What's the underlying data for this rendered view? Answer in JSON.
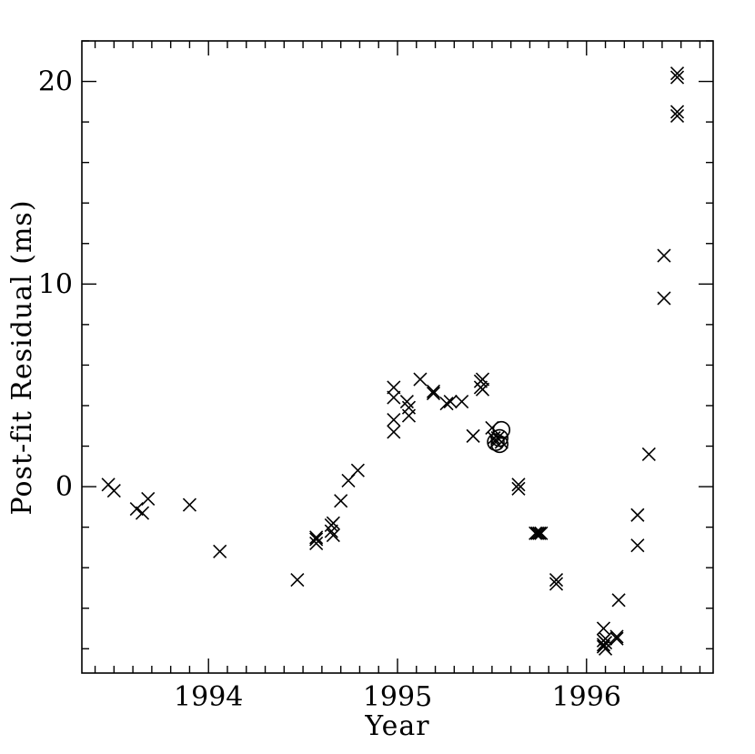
{
  "chart_data": {
    "type": "scatter",
    "title": "",
    "xlabel": "Year",
    "ylabel": "Post-fit Residual (ms)",
    "xlim": [
      1993.33,
      1996.67
    ],
    "ylim": [
      -9.2,
      22.0
    ],
    "x_major_ticks": [
      1994,
      1995,
      1996
    ],
    "x_tick_labels": [
      "1994",
      "1995",
      "1996"
    ],
    "x_minor_step": 0.1,
    "y_major_ticks": [
      0,
      10,
      20
    ],
    "y_tick_labels": [
      "0",
      "10",
      "20"
    ],
    "y_minor_step": 2,
    "grid": false,
    "series": [
      {
        "marker": "x",
        "points": [
          [
            1993.47,
            0.1
          ],
          [
            1993.5,
            -0.2
          ],
          [
            1993.62,
            -1.1
          ],
          [
            1993.65,
            -1.3
          ],
          [
            1993.68,
            -0.6
          ],
          [
            1993.9,
            -0.9
          ],
          [
            1994.06,
            -3.2
          ],
          [
            1994.47,
            -4.6
          ],
          [
            1994.57,
            -2.6
          ],
          [
            1994.57,
            -2.8
          ],
          [
            1994.57,
            -2.5
          ],
          [
            1994.65,
            -1.9
          ],
          [
            1994.65,
            -2.2
          ],
          [
            1994.66,
            -2.4
          ],
          [
            1994.66,
            -1.8
          ],
          [
            1994.7,
            -0.7
          ],
          [
            1994.74,
            0.3
          ],
          [
            1994.79,
            0.8
          ],
          [
            1994.98,
            4.9
          ],
          [
            1994.98,
            4.4
          ],
          [
            1994.98,
            3.3
          ],
          [
            1994.98,
            2.7
          ],
          [
            1995.05,
            4.2
          ],
          [
            1995.06,
            3.9
          ],
          [
            1995.06,
            3.5
          ],
          [
            1995.12,
            5.3
          ],
          [
            1995.19,
            4.7
          ],
          [
            1995.19,
            4.6
          ],
          [
            1995.26,
            4.1
          ],
          [
            1995.28,
            4.2
          ],
          [
            1995.34,
            4.2
          ],
          [
            1995.4,
            2.5
          ],
          [
            1995.44,
            5.2
          ],
          [
            1995.44,
            4.9
          ],
          [
            1995.45,
            5.3
          ],
          [
            1995.45,
            4.8
          ],
          [
            1995.5,
            2.9
          ],
          [
            1995.51,
            2.4
          ],
          [
            1995.52,
            2.2
          ],
          [
            1995.53,
            2.4
          ],
          [
            1995.55,
            2.2
          ],
          [
            1995.64,
            0.1
          ],
          [
            1995.64,
            -0.1
          ],
          [
            1995.73,
            -2.3
          ],
          [
            1995.74,
            -2.3
          ],
          [
            1995.75,
            -2.3
          ],
          [
            1995.76,
            -2.3
          ],
          [
            1995.84,
            -4.6
          ],
          [
            1995.84,
            -4.8
          ],
          [
            1996.09,
            -7.0
          ],
          [
            1996.09,
            -7.6
          ],
          [
            1996.09,
            -7.8
          ],
          [
            1996.09,
            -7.9
          ],
          [
            1996.1,
            -8.0
          ],
          [
            1996.1,
            -7.7
          ],
          [
            1996.1,
            -7.5
          ],
          [
            1996.16,
            -7.4
          ],
          [
            1996.16,
            -7.5
          ],
          [
            1996.17,
            -5.6
          ],
          [
            1996.27,
            -1.4
          ],
          [
            1996.27,
            -2.9
          ],
          [
            1996.33,
            1.6
          ],
          [
            1996.41,
            11.4
          ],
          [
            1996.41,
            9.3
          ],
          [
            1996.48,
            20.4
          ],
          [
            1996.48,
            20.2
          ],
          [
            1996.48,
            18.5
          ],
          [
            1996.48,
            18.3
          ]
        ]
      },
      {
        "marker": "o",
        "points": [
          [
            1995.55,
            2.8
          ],
          [
            1995.54,
            2.4
          ],
          [
            1995.52,
            2.2
          ],
          [
            1995.54,
            2.1
          ]
        ]
      }
    ]
  }
}
